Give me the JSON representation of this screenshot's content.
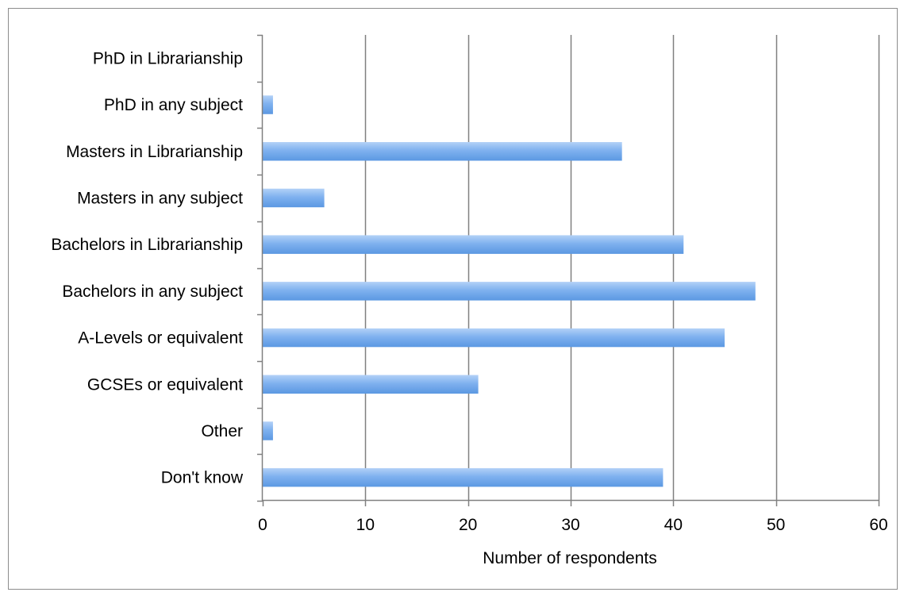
{
  "chart_data": {
    "type": "bar",
    "orientation": "horizontal",
    "categories": [
      "PhD in Librarianship",
      "PhD in any subject",
      "Masters in Librarianship",
      "Masters in any subject",
      "Bachelors in Librarianship",
      "Bachelors in any subject",
      "A-Levels or equivalent",
      "GCSEs or equivalent",
      "Other",
      "Don't know"
    ],
    "values": [
      0,
      1,
      35,
      6,
      41,
      48,
      45,
      21,
      1,
      39
    ],
    "xlabel": "Number of respondents",
    "ylabel": "",
    "title": "",
    "xlim": [
      0,
      60
    ],
    "xticks": [
      0,
      10,
      20,
      30,
      40,
      50,
      60
    ],
    "grid": "vertical",
    "legend": "none",
    "colors": {
      "bar_light": "#b3d1f7",
      "bar_mid": "#7fb1ef",
      "bar_dark": "#5b98e2",
      "gridline": "#808080",
      "axis": "#808080",
      "frame": "#8c8c8c"
    }
  }
}
